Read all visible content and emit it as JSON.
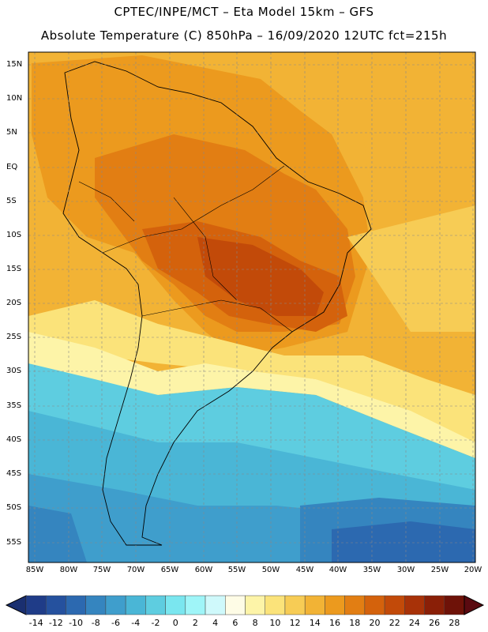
{
  "title_line1": "CPTEC/INPE/MCT –  Eta Model 15km – GFS",
  "title_line2": "Absolute Temperature (C) 850hPa – 16/09/2020 12UTC fct=215h",
  "lat_labels": [
    "15N",
    "10N",
    "5N",
    "EQ",
    "5S",
    "10S",
    "15S",
    "20S",
    "25S",
    "30S",
    "35S",
    "40S",
    "45S",
    "50S",
    "55S"
  ],
  "lon_labels": [
    "85W",
    "80W",
    "75W",
    "70W",
    "65W",
    "60W",
    "55W",
    "50W",
    "45W",
    "40W",
    "35W",
    "30W",
    "25W",
    "20W"
  ],
  "colorbar": {
    "ticks": [
      "-14",
      "-12",
      "-10",
      "-8",
      "-6",
      "-4",
      "-2",
      "0",
      "2",
      "4",
      "6",
      "8",
      "10",
      "12",
      "14",
      "16",
      "18",
      "20",
      "22",
      "24",
      "26",
      "28"
    ],
    "colors": [
      "#1f3c88",
      "#25519e",
      "#2c69b0",
      "#3585bf",
      "#3f9ecc",
      "#4ab6d6",
      "#5ecde0",
      "#7ae6ef",
      "#9ff5f8",
      "#cff9fb",
      "#fefce6",
      "#fdf4a8",
      "#fbe37a",
      "#f7cc55",
      "#f2b335",
      "#ec9a1e",
      "#e27e13",
      "#d4620c",
      "#c24a09",
      "#a83208",
      "#8a1f07",
      "#6e1208"
    ]
  }
}
